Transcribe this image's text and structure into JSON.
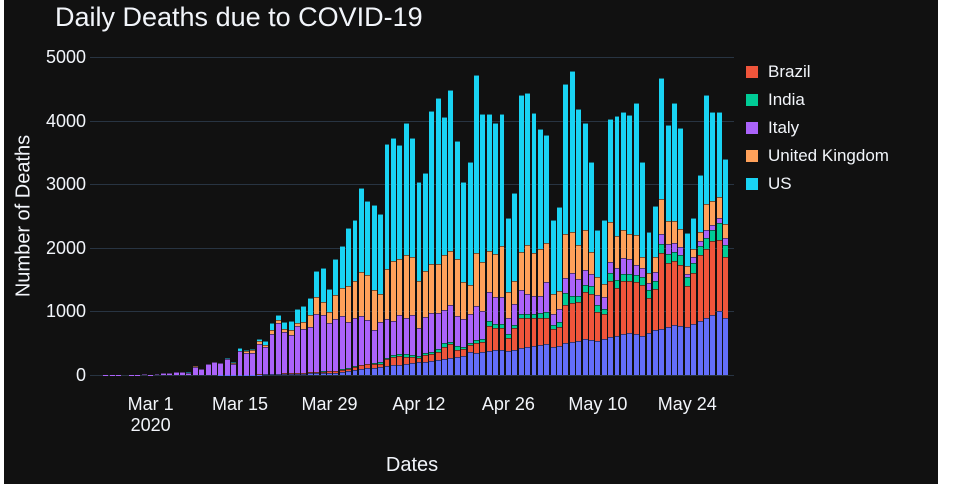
{
  "colors": {
    "page_background": "#ffffff",
    "chart_background": "#111111",
    "text": "#f2f5fa",
    "grid": "#283442"
  },
  "chart_data": {
    "type": "bar",
    "stacked": true,
    "title": "Daily Deaths due to COVID-19",
    "xlabel": "Dates",
    "ylabel": "Number of Deaths",
    "ylim": [
      0,
      5000
    ],
    "yticks": [
      0,
      1000,
      2000,
      3000,
      4000,
      5000
    ],
    "grid": true,
    "legend_position": "right",
    "xticks": [
      {
        "day_index": 8,
        "lines": [
          "Mar 1",
          "2020"
        ]
      },
      {
        "day_index": 22,
        "lines": [
          "Mar 15"
        ]
      },
      {
        "day_index": 36,
        "lines": [
          "Mar 29"
        ]
      },
      {
        "day_index": 50,
        "lines": [
          "Apr 12"
        ]
      },
      {
        "day_index": 64,
        "lines": [
          "Apr 26"
        ]
      },
      {
        "day_index": 78,
        "lines": [
          "May 10"
        ]
      },
      {
        "day_index": 92,
        "lines": [
          "May 24"
        ]
      }
    ],
    "dates": [
      "Feb 22",
      "Feb 23",
      "Feb 24",
      "Feb 25",
      "Feb 26",
      "Feb 27",
      "Feb 28",
      "Feb 29",
      "Mar 1",
      "Mar 2",
      "Mar 3",
      "Mar 4",
      "Mar 5",
      "Mar 6",
      "Mar 7",
      "Mar 8",
      "Mar 9",
      "Mar 10",
      "Mar 11",
      "Mar 12",
      "Mar 13",
      "Mar 14",
      "Mar 15",
      "Mar 16",
      "Mar 17",
      "Mar 18",
      "Mar 19",
      "Mar 20",
      "Mar 21",
      "Mar 22",
      "Mar 23",
      "Mar 24",
      "Mar 25",
      "Mar 26",
      "Mar 27",
      "Mar 28",
      "Mar 29",
      "Mar 30",
      "Mar 31",
      "Apr 1",
      "Apr 2",
      "Apr 3",
      "Apr 4",
      "Apr 5",
      "Apr 6",
      "Apr 7",
      "Apr 8",
      "Apr 9",
      "Apr 10",
      "Apr 11",
      "Apr 12",
      "Apr 13",
      "Apr 14",
      "Apr 15",
      "Apr 16",
      "Apr 17",
      "Apr 18",
      "Apr 19",
      "Apr 20",
      "Apr 21",
      "Apr 22",
      "Apr 23",
      "Apr 24",
      "Apr 25",
      "Apr 26",
      "Apr 27",
      "Apr 28",
      "Apr 29",
      "Apr 30",
      "May 1",
      "May 2",
      "May 3",
      "May 4",
      "May 5",
      "May 6",
      "May 7",
      "May 8",
      "May 9",
      "May 10",
      "May 11",
      "May 12",
      "May 13",
      "May 14",
      "May 15",
      "May 16",
      "May 17",
      "May 18",
      "May 19",
      "May 20",
      "May 21",
      "May 22",
      "May 23",
      "May 24",
      "May 25",
      "May 26",
      "May 27",
      "May 28",
      "May 29",
      "May 30"
    ],
    "series": [
      {
        "name": "(no legend entry)",
        "color": "#636EFA",
        "show_in_legend": false,
        "values": [
          0,
          0,
          0,
          0,
          0,
          0,
          0,
          0,
          0,
          0,
          0,
          0,
          0,
          0,
          0,
          0,
          0,
          1,
          1,
          2,
          2,
          2,
          3,
          4,
          5,
          6,
          8,
          10,
          12,
          14,
          16,
          18,
          20,
          24,
          27,
          30,
          34,
          38,
          42,
          60,
          75,
          90,
          105,
          110,
          120,
          135,
          150,
          160,
          175,
          190,
          200,
          210,
          225,
          240,
          255,
          270,
          285,
          300,
          360,
          340,
          355,
          370,
          385,
          400,
          380,
          395,
          420,
          440,
          455,
          470,
          480,
          440,
          460,
          500,
          520,
          540,
          560,
          545,
          530,
          560,
          600,
          620,
          640,
          660,
          640,
          620,
          660,
          700,
          730,
          760,
          790,
          770,
          750,
          800,
          850,
          900,
          950,
          1000,
          900
        ]
      },
      {
        "name": "Brazil",
        "color": "#EF553B",
        "show_in_legend": true,
        "values": [
          0,
          0,
          0,
          0,
          0,
          0,
          0,
          0,
          0,
          0,
          0,
          0,
          0,
          0,
          0,
          0,
          0,
          0,
          0,
          0,
          0,
          0,
          0,
          0,
          1,
          3,
          3,
          11,
          7,
          9,
          9,
          12,
          12,
          20,
          15,
          22,
          22,
          23,
          42,
          39,
          58,
          63,
          64,
          67,
          60,
          114,
          133,
          141,
          115,
          99,
          68,
          99,
          105,
          115,
          188,
          211,
          115,
          101,
          113,
          166,
          165,
          407,
          357,
          346,
          209,
          338,
          474,
          449,
          435,
          428,
          421,
          275,
          297,
          600,
          615,
          610,
          751,
          730,
          467,
          396,
          881,
          749,
          844,
          824,
          816,
          800,
          550,
          650,
          1188,
          1000,
          1001,
          965,
          653,
          807,
          1039,
          1086,
          1156,
          1124,
          956
        ]
      },
      {
        "name": "India",
        "color": "#00CC96",
        "show_in_legend": true,
        "values": [
          0,
          0,
          0,
          0,
          0,
          0,
          0,
          0,
          0,
          0,
          0,
          0,
          0,
          0,
          0,
          0,
          0,
          0,
          0,
          1,
          0,
          1,
          0,
          0,
          1,
          1,
          1,
          0,
          1,
          1,
          1,
          1,
          2,
          2,
          4,
          4,
          5,
          7,
          9,
          12,
          9,
          12,
          11,
          13,
          20,
          24,
          28,
          34,
          40,
          29,
          34,
          41,
          38,
          47,
          54,
          44,
          48,
          39,
          36,
          48,
          50,
          65,
          57,
          60,
          48,
          56,
          64,
          67,
          67,
          71,
          83,
          72,
          83,
          195,
          103,
          87,
          97,
          117,
          103,
          87,
          120,
          122,
          100,
          100,
          120,
          113,
          134,
          132,
          140,
          148,
          150,
          155,
          142,
          154,
          146,
          170,
          175,
          265,
          193
        ]
      },
      {
        "name": "Italy",
        "color": "#AB63FA",
        "show_in_legend": true,
        "values": [
          1,
          2,
          3,
          4,
          1,
          5,
          4,
          8,
          5,
          18,
          27,
          28,
          41,
          49,
          36,
          133,
          97,
          168,
          196,
          189,
          250,
          175,
          368,
          349,
          345,
          475,
          427,
          627,
          793,
          651,
          601,
          743,
          683,
          712,
          919,
          889,
          756,
          812,
          837,
          727,
          760,
          766,
          681,
          525,
          636,
          604,
          542,
          610,
          570,
          619,
          431,
          566,
          602,
          578,
          525,
          575,
          482,
          433,
          454,
          534,
          437,
          464,
          420,
          415,
          260,
          333,
          382,
          323,
          285,
          269,
          474,
          174,
          195,
          236,
          369,
          274,
          243,
          194,
          165,
          179,
          172,
          195,
          262,
          242,
          153,
          145,
          99,
          130,
          161,
          156,
          130,
          119,
          50,
          92,
          78,
          117,
          70,
          87,
          111
        ]
      },
      {
        "name": "United Kingdom",
        "color": "#FFA15A",
        "show_in_legend": true,
        "values": [
          0,
          0,
          0,
          0,
          0,
          0,
          0,
          0,
          0,
          0,
          0,
          0,
          1,
          0,
          0,
          1,
          0,
          0,
          0,
          1,
          2,
          10,
          14,
          21,
          34,
          43,
          33,
          56,
          48,
          54,
          87,
          41,
          115,
          181,
          260,
          209,
          180,
          381,
          443,
          563,
          569,
          684,
          708,
          621,
          439,
          786,
          938,
          881,
          980,
          917,
          737,
          717,
          778,
          761,
          861,
          847,
          888,
          596,
          449,
          828,
          763,
          638,
          684,
          813,
          413,
          360,
          586,
          765,
          674,
          739,
          621,
          315,
          288,
          693,
          649,
          539,
          626,
          346,
          268,
          210,
          627,
          494,
          428,
          384,
          468,
          170,
          160,
          250,
          545,
          363,
          351,
          282,
          118,
          121,
          134,
          412,
          377,
          324,
          215
        ]
      },
      {
        "name": "US",
        "color": "#19D3F3",
        "show_in_legend": true,
        "values": [
          0,
          0,
          0,
          0,
          0,
          0,
          0,
          1,
          1,
          5,
          0,
          4,
          2,
          3,
          4,
          3,
          4,
          3,
          8,
          3,
          11,
          10,
          41,
          18,
          23,
          41,
          57,
          110,
          80,
          111,
          140,
          225,
          247,
          268,
          411,
          525,
          363,
          558,
          661,
          909,
          968,
          1321,
          1165,
          1342,
          1255,
          1970,
          1940,
          1783,
          2087,
          1877,
          1557,
          1541,
          2408,
          2621,
          2174,
          2535,
          1867,
          1561,
          1939,
          2804,
          2341,
          2160,
          2065,
          2065,
          1152,
          1384,
          2470,
          2390,
          2201,
          1898,
          1691,
          1154,
          1324,
          2350,
          2528,
          2129,
          1687,
          1422,
          750,
          1008,
          1630,
          1900,
          1860,
          1880,
          2080,
          1500,
          650,
          800,
          1900,
          1500,
          1850,
          1600,
          520,
          500,
          890,
          1710,
          1400,
          1330,
          1025
        ]
      }
    ]
  }
}
